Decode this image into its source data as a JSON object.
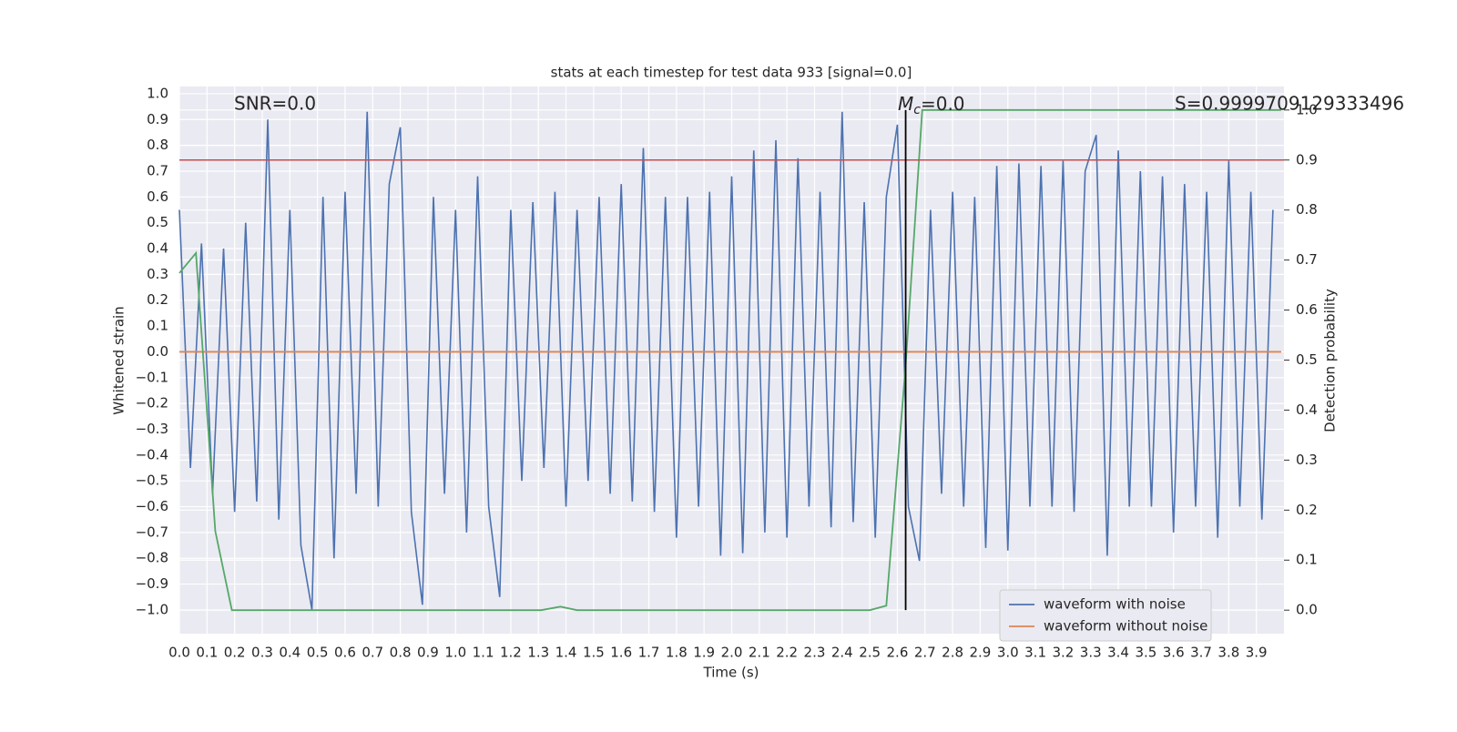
{
  "chart_data": {
    "type": "line",
    "title": "stats at each timestep for test data 933 [signal=0.0]",
    "xlabel": "Time (s)",
    "ylabel": "Whitened strain",
    "y2label": "Detection probability",
    "annotations": {
      "snr": "SNR=0.0",
      "mc": [
        "M",
        "c",
        "=0.0"
      ],
      "s": "S=0.9999709129333496"
    },
    "xlim": [
      0,
      4.0
    ],
    "ylim": [
      -1.092,
      1.028
    ],
    "y2lim": [
      -0.047,
      1.047
    ],
    "grid": true,
    "legend": "lower right",
    "xticks": [
      {
        "value": 0,
        "label": "0.0"
      },
      {
        "value": 0.1,
        "label": "0.1"
      },
      {
        "value": 0.2,
        "label": "0.2"
      },
      {
        "value": 0.3,
        "label": "0.3"
      },
      {
        "value": 0.4,
        "label": "0.4"
      },
      {
        "value": 0.5,
        "label": "0.5"
      },
      {
        "value": 0.6,
        "label": "0.6"
      },
      {
        "value": 0.7,
        "label": "0.7"
      },
      {
        "value": 0.8,
        "label": "0.8"
      },
      {
        "value": 0.9,
        "label": "0.9"
      },
      {
        "value": 1,
        "label": "1.0"
      },
      {
        "value": 1.1,
        "label": "1.1"
      },
      {
        "value": 1.2,
        "label": "1.2"
      },
      {
        "value": 1.3,
        "label": "1.3"
      },
      {
        "value": 1.4,
        "label": "1.4"
      },
      {
        "value": 1.5,
        "label": "1.5"
      },
      {
        "value": 1.6,
        "label": "1.6"
      },
      {
        "value": 1.7,
        "label": "1.7"
      },
      {
        "value": 1.8,
        "label": "1.8"
      },
      {
        "value": 1.9,
        "label": "1.9"
      },
      {
        "value": 2,
        "label": "2.0"
      },
      {
        "value": 2.1,
        "label": "2.1"
      },
      {
        "value": 2.2,
        "label": "2.2"
      },
      {
        "value": 2.3,
        "label": "2.3"
      },
      {
        "value": 2.4,
        "label": "2.4"
      },
      {
        "value": 2.5,
        "label": "2.5"
      },
      {
        "value": 2.6,
        "label": "2.6"
      },
      {
        "value": 2.7,
        "label": "2.7"
      },
      {
        "value": 2.8,
        "label": "2.8"
      },
      {
        "value": 2.9,
        "label": "2.9"
      },
      {
        "value": 3,
        "label": "3.0"
      },
      {
        "value": 3.1,
        "label": "3.1"
      },
      {
        "value": 3.2,
        "label": "3.2"
      },
      {
        "value": 3.3,
        "label": "3.3"
      },
      {
        "value": 3.4,
        "label": "3.4"
      },
      {
        "value": 3.5,
        "label": "3.5"
      },
      {
        "value": 3.6,
        "label": "3.6"
      },
      {
        "value": 3.7,
        "label": "3.7"
      },
      {
        "value": 3.8,
        "label": "3.8"
      },
      {
        "value": 3.9,
        "label": "3.9"
      }
    ],
    "yticks": [
      {
        "value": -1,
        "label": "−1.0"
      },
      {
        "value": -0.9,
        "label": "−0.9"
      },
      {
        "value": -0.8,
        "label": "−0.8"
      },
      {
        "value": -0.7,
        "label": "−0.7"
      },
      {
        "value": -0.6,
        "label": "−0.6"
      },
      {
        "value": -0.5,
        "label": "−0.5"
      },
      {
        "value": -0.4,
        "label": "−0.4"
      },
      {
        "value": -0.3,
        "label": "−0.3"
      },
      {
        "value": -0.2,
        "label": "−0.2"
      },
      {
        "value": -0.1,
        "label": "−0.1"
      },
      {
        "value": 0,
        "label": "0.0"
      },
      {
        "value": 0.1,
        "label": "0.1"
      },
      {
        "value": 0.2,
        "label": "0.2"
      },
      {
        "value": 0.3,
        "label": "0.3"
      },
      {
        "value": 0.4,
        "label": "0.4"
      },
      {
        "value": 0.5,
        "label": "0.5"
      },
      {
        "value": 0.6,
        "label": "0.6"
      },
      {
        "value": 0.7,
        "label": "0.7"
      },
      {
        "value": 0.8,
        "label": "0.8"
      },
      {
        "value": 0.9,
        "label": "0.9"
      },
      {
        "value": 1,
        "label": "1.0"
      }
    ],
    "y2ticks": [
      {
        "value": 0,
        "label": "0.0"
      },
      {
        "value": 0.1,
        "label": "0.1"
      },
      {
        "value": 0.2,
        "label": "0.2"
      },
      {
        "value": 0.3,
        "label": "0.3"
      },
      {
        "value": 0.4,
        "label": "0.4"
      },
      {
        "value": 0.5,
        "label": "0.5"
      },
      {
        "value": 0.6,
        "label": "0.6"
      },
      {
        "value": 0.7,
        "label": "0.7"
      },
      {
        "value": 0.8,
        "label": "0.8"
      },
      {
        "value": 0.9,
        "label": "0.9"
      },
      {
        "value": 1,
        "label": "1.0"
      }
    ],
    "series": [
      {
        "name": "waveform with noise",
        "color": "#4c72b0",
        "x": [
          0,
          0.04,
          0.08,
          0.12,
          0.16,
          0.2,
          0.24,
          0.28,
          0.32,
          0.36,
          0.4,
          0.44,
          0.48,
          0.52,
          0.56,
          0.6,
          0.64,
          0.68,
          0.72,
          0.76,
          0.8,
          0.84,
          0.88,
          0.92,
          0.96,
          1,
          1.04,
          1.08,
          1.12,
          1.16,
          1.2,
          1.24,
          1.28,
          1.32,
          1.36,
          1.4,
          1.44,
          1.48,
          1.52,
          1.56,
          1.6,
          1.64,
          1.68,
          1.72,
          1.76,
          1.8,
          1.84,
          1.88,
          1.92,
          1.96,
          2,
          2.04,
          2.08,
          2.12,
          2.16,
          2.2,
          2.24,
          2.28,
          2.32,
          2.36,
          2.4,
          2.44,
          2.48,
          2.52,
          2.56,
          2.6,
          2.64,
          2.68,
          2.72,
          2.76,
          2.8,
          2.84,
          2.88,
          2.92,
          2.96,
          3,
          3.04,
          3.08,
          3.12,
          3.16,
          3.2,
          3.24,
          3.28,
          3.32,
          3.36,
          3.4,
          3.44,
          3.48,
          3.52,
          3.56,
          3.6,
          3.64,
          3.68,
          3.72,
          3.76,
          3.8,
          3.84,
          3.88,
          3.92,
          3.96
        ],
        "values": [
          0.55,
          -0.45,
          0.42,
          -0.55,
          0.4,
          -0.62,
          0.5,
          -0.58,
          0.9,
          -0.65,
          0.55,
          -0.75,
          -1.0,
          0.6,
          -0.8,
          0.62,
          -0.55,
          0.93,
          -0.6,
          0.65,
          0.87,
          -0.62,
          -0.98,
          0.6,
          -0.55,
          0.55,
          -0.7,
          0.68,
          -0.6,
          -0.95,
          0.55,
          -0.5,
          0.58,
          -0.45,
          0.62,
          -0.6,
          0.55,
          -0.5,
          0.6,
          -0.55,
          0.65,
          -0.58,
          0.79,
          -0.62,
          0.6,
          -0.72,
          0.6,
          -0.6,
          0.62,
          -0.79,
          0.68,
          -0.78,
          0.78,
          -0.7,
          0.82,
          -0.72,
          0.75,
          -0.6,
          0.62,
          -0.68,
          0.93,
          -0.66,
          0.58,
          -0.72,
          0.6,
          0.88,
          -0.6,
          -0.81,
          0.55,
          -0.55,
          0.62,
          -0.6,
          0.6,
          -0.76,
          0.72,
          -0.77,
          0.73,
          -0.6,
          0.72,
          -0.6,
          0.74,
          -0.62,
          0.7,
          0.84,
          -0.79,
          0.78,
          -0.6,
          0.7,
          -0.6,
          0.68,
          -0.7,
          0.65,
          -0.6,
          0.62,
          -0.72,
          0.74,
          -0.6,
          0.62,
          -0.65,
          0.55
        ]
      },
      {
        "name": "waveform without noise",
        "color": "#dd8452",
        "x": [
          0,
          3.99
        ],
        "values": [
          0,
          0
        ]
      },
      {
        "color": "#55a868",
        "axis": "y2",
        "x": [
          0,
          0.06,
          0.13,
          0.19,
          0.25,
          1.31,
          1.38,
          1.44,
          2.5,
          2.56,
          2.63,
          2.69,
          3.99
        ],
        "values": [
          0.674,
          0.714,
          0.158,
          0,
          0,
          0,
          0.007,
          0,
          0,
          0.009,
          0.49,
          1.0,
          1.0
        ]
      }
    ],
    "hlines": [
      {
        "y": 0.9,
        "axis": "y2",
        "color": "#c44e52"
      }
    ],
    "vlines": [
      {
        "x": 2.63,
        "ymin": 0,
        "ymax": 1.0,
        "axis": "y2",
        "color": "#000000"
      }
    ]
  }
}
